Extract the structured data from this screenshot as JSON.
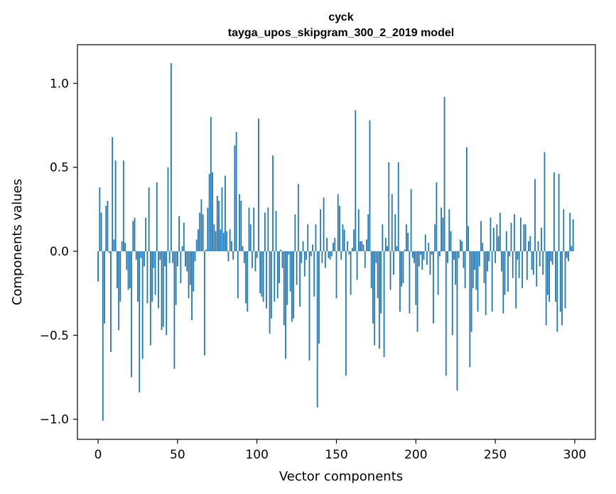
{
  "chart_data": {
    "type": "bar",
    "title_line1": "сусk",
    "title_line2": "tayga_upos_skipgram_300_2_2019 model",
    "xlabel": "Vector components",
    "ylabel": "Components values",
    "xlim": [
      -13,
      313
    ],
    "ylim": [
      -1.12,
      1.23
    ],
    "xticks": [
      0,
      50,
      100,
      150,
      200,
      250,
      300
    ],
    "xtick_labels": [
      "0",
      "50",
      "100",
      "150",
      "200",
      "250",
      "300"
    ],
    "yticks": [
      -1.0,
      -0.5,
      0.0,
      0.5,
      1.0
    ],
    "ytick_labels": [
      "−1.0",
      "−0.5",
      "0.0",
      "0.5",
      "1.0"
    ],
    "bar_color": "#1f77b4",
    "x_start": 0,
    "values": [
      -0.18,
      0.38,
      0.23,
      -1.01,
      -0.43,
      0.27,
      0.3,
      -0.01,
      -0.6,
      0.68,
      0.07,
      0.54,
      -0.22,
      -0.47,
      -0.3,
      0.06,
      0.54,
      0.05,
      -0.11,
      -0.23,
      -0.22,
      -0.75,
      0.18,
      0.2,
      -0.05,
      -0.3,
      -0.84,
      -0.04,
      -0.64,
      -0.09,
      0.2,
      -0.31,
      0.38,
      -0.56,
      -0.3,
      -0.1,
      -0.26,
      0.41,
      -0.34,
      -0.05,
      -0.47,
      -0.45,
      -0.09,
      -0.5,
      0.5,
      -0.07,
      1.12,
      -0.07,
      -0.7,
      -0.32,
      -0.09,
      0.21,
      -0.19,
      0.03,
      0.17,
      -0.09,
      -0.12,
      -0.28,
      -0.2,
      -0.41,
      -0.24,
      -0.06,
      0.07,
      0.13,
      0.23,
      0.31,
      0.22,
      -0.62,
      0.01,
      0.26,
      0.46,
      0.8,
      0.47,
      0.16,
      0.12,
      0.33,
      0.3,
      0.13,
      0.38,
      0.11,
      0.45,
      0.12,
      -0.06,
      0.13,
      0.06,
      -0.05,
      0.63,
      0.71,
      -0.28,
      0.34,
      0.3,
      0.03,
      -0.07,
      -0.31,
      -0.36,
      0.26,
      0.16,
      -0.1,
      0.26,
      -0.12,
      -0.04,
      0.79,
      -0.25,
      -0.27,
      -0.3,
      0.23,
      -0.34,
      0.26,
      -0.49,
      -0.4,
      0.57,
      -0.3,
      0.24,
      -0.28,
      -0.19,
      0.01,
      -0.1,
      -0.44,
      -0.64,
      -0.32,
      -0.02,
      -0.24,
      -0.42,
      -0.4,
      0.22,
      -0.2,
      0.4,
      -0.33,
      -0.07,
      0.06,
      -0.15,
      -0.05,
      0.16,
      -0.65,
      -0.03,
      0.04,
      -0.27,
      0.16,
      -0.93,
      -0.55,
      0.25,
      -0.07,
      0.32,
      -0.1,
      0.08,
      -0.04,
      -0.05,
      -0.03,
      0.05,
      0.08,
      -0.28,
      0.34,
      0.27,
      -0.05,
      0.16,
      0.13,
      -0.74,
      0.06,
      -0.02,
      -0.26,
      0.02,
      0.13,
      0.84,
      -0.17,
      0.25,
      0.06,
      0.06,
      0.04,
      -0.1,
      0.07,
      0.22,
      0.78,
      -0.22,
      -0.43,
      -0.56,
      -0.07,
      -0.28,
      -0.58,
      -0.37,
      0.16,
      -0.63,
      0.08,
      0.03,
      0.53,
      -0.23,
      0.34,
      -0.14,
      0.22,
      0.03,
      0.53,
      -0.36,
      -0.21,
      -0.19,
      0.01,
      0.16,
      0.11,
      -0.37,
      0.37,
      -0.04,
      -0.07,
      -0.32,
      -0.48,
      -0.09,
      -0.02,
      -0.11,
      -0.05,
      0.1,
      -0.08,
      0.05,
      -0.14,
      -0.02,
      -0.43,
      0.16,
      0.41,
      -0.26,
      -0.03,
      0.26,
      0.2,
      0.92,
      -0.74,
      -0.07,
      0.25,
      0.12,
      -0.5,
      -0.05,
      -0.2,
      -0.83,
      -0.04,
      0.07,
      0.06,
      -0.1,
      -0.22,
      0.62,
      0.15,
      -0.69,
      -0.48,
      -0.22,
      -0.11,
      -0.23,
      -0.36,
      -0.09,
      0.18,
      0.05,
      -0.19,
      -0.38,
      -0.12,
      -0.06,
      0.2,
      -0.36,
      0.14,
      -0.07,
      0.16,
      0.09,
      0.23,
      -0.12,
      -0.37,
      -0.26,
      0.12,
      -0.24,
      -0.03,
      0.17,
      -0.16,
      0.22,
      -0.34,
      -0.05,
      -0.16,
      0.2,
      -0.22,
      0.16,
      0.16,
      -0.17,
      0.06,
      0.09,
      -0.11,
      -0.14,
      0.43,
      -0.21,
      0.06,
      -0.09,
      0.14,
      -0.14,
      0.59,
      -0.44,
      -0.26,
      -0.3,
      -0.06,
      -0.08,
      0.47,
      -0.3,
      -0.48,
      0.46,
      -0.36,
      -0.44,
      0.25,
      -0.34,
      -0.04,
      -0.06,
      0.23,
      0.03,
      0.19
    ]
  }
}
